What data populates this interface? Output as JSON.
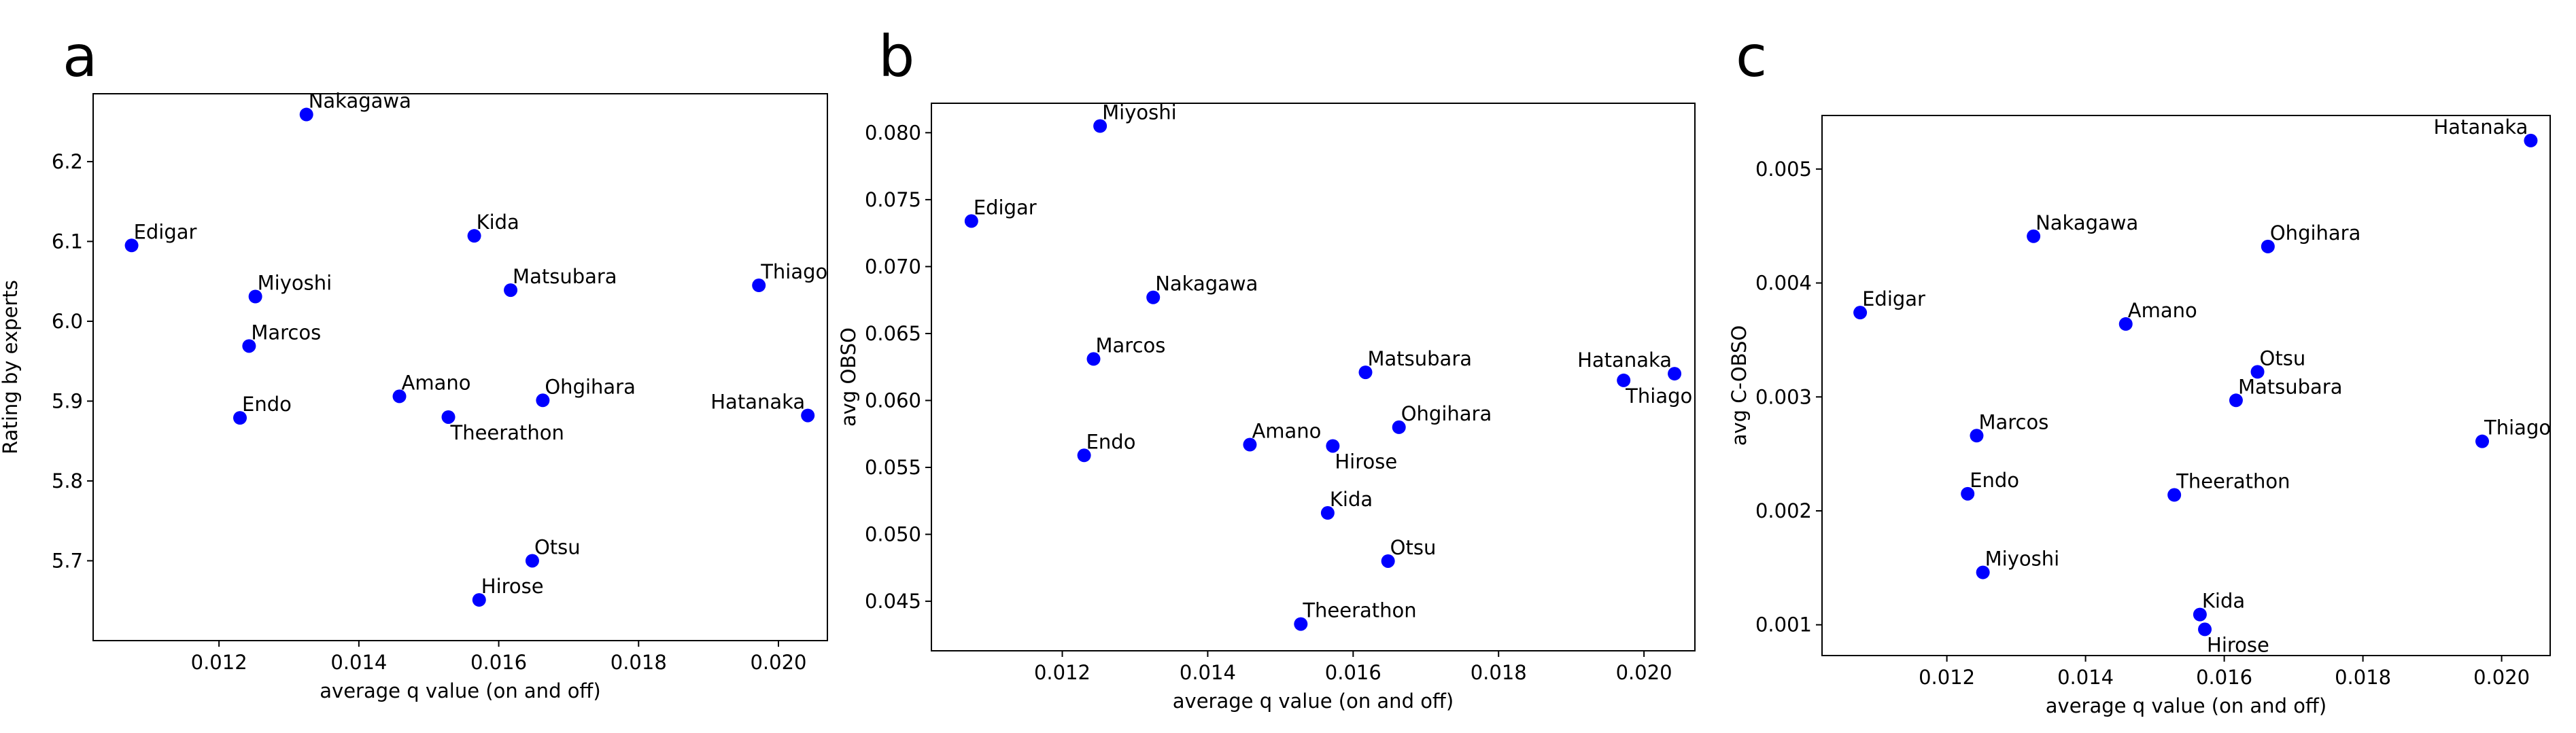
{
  "chart_data": [
    {
      "panel": "a",
      "type": "scatter",
      "xlabel": "average q value (on and off)",
      "ylabel": "Rating by experts",
      "xlim": [
        0.0102,
        0.0207
      ],
      "ylim": [
        5.6,
        6.285
      ],
      "xticks": [
        "0.012",
        "0.014",
        "0.016",
        "0.018",
        "0.020"
      ],
      "xtick_values": [
        0.012,
        0.014,
        0.016,
        0.018,
        0.02
      ],
      "yticks": [
        "5.7",
        "5.8",
        "5.9",
        "6.0",
        "6.1",
        "6.2"
      ],
      "ytick_values": [
        5.7,
        5.8,
        5.9,
        6.0,
        6.1,
        6.2
      ],
      "points": [
        {
          "label": "Nakagawa",
          "x": 0.01325,
          "y": 6.259,
          "anchor": "start",
          "dy": -1
        },
        {
          "label": "Edigar",
          "x": 0.01075,
          "y": 6.095,
          "anchor": "start",
          "dy": -1
        },
        {
          "label": "Kida",
          "x": 0.01565,
          "y": 6.107,
          "anchor": "start",
          "dy": -1
        },
        {
          "label": "Miyoshi",
          "x": 0.01252,
          "y": 6.031,
          "anchor": "start",
          "dy": -1
        },
        {
          "label": "Matsubara",
          "x": 0.01617,
          "y": 6.039,
          "anchor": "start",
          "dy": -1
        },
        {
          "label": "Thiago",
          "x": 0.01972,
          "y": 6.045,
          "anchor": "start",
          "dy": -1
        },
        {
          "label": "Marcos",
          "x": 0.01243,
          "y": 5.969,
          "anchor": "start",
          "dy": -1
        },
        {
          "label": "Amano",
          "x": 0.01458,
          "y": 5.906,
          "anchor": "start",
          "dy": -1
        },
        {
          "label": "Ohgihara",
          "x": 0.01663,
          "y": 5.901,
          "anchor": "start",
          "dy": -1
        },
        {
          "label": "Endo",
          "x": 0.0123,
          "y": 5.879,
          "anchor": "start",
          "dy": -1
        },
        {
          "label": "Theerathon",
          "x": 0.01528,
          "y": 5.88,
          "anchor": "start",
          "dy": 1
        },
        {
          "label": "Hatanaka",
          "x": 0.02042,
          "y": 5.882,
          "anchor": "end",
          "dy": -1
        },
        {
          "label": "Otsu",
          "x": 0.01648,
          "y": 5.7,
          "anchor": "start",
          "dy": -1
        },
        {
          "label": "Hirose",
          "x": 0.01572,
          "y": 5.651,
          "anchor": "start",
          "dy": -1
        }
      ]
    },
    {
      "panel": "b",
      "type": "scatter",
      "xlabel": "average q value (on and off)",
      "ylabel": "avg OBSO",
      "xlim": [
        0.0102,
        0.0207
      ],
      "ylim": [
        0.0413,
        0.0822
      ],
      "xticks": [
        "0.012",
        "0.014",
        "0.016",
        "0.018",
        "0.020"
      ],
      "xtick_values": [
        0.012,
        0.014,
        0.016,
        0.018,
        0.02
      ],
      "yticks": [
        "0.045",
        "0.050",
        "0.055",
        "0.060",
        "0.065",
        "0.070",
        "0.075",
        "0.080"
      ],
      "ytick_values": [
        0.045,
        0.05,
        0.055,
        0.06,
        0.065,
        0.07,
        0.075,
        0.08
      ],
      "points": [
        {
          "label": "Miyoshi",
          "x": 0.01252,
          "y": 0.0805,
          "anchor": "start",
          "dy": -1
        },
        {
          "label": "Edigar",
          "x": 0.01075,
          "y": 0.0734,
          "anchor": "start",
          "dy": -1
        },
        {
          "label": "Nakagawa",
          "x": 0.01325,
          "y": 0.0677,
          "anchor": "start",
          "dy": -1
        },
        {
          "label": "Marcos",
          "x": 0.01243,
          "y": 0.0631,
          "anchor": "start",
          "dy": -1
        },
        {
          "label": "Matsubara",
          "x": 0.01617,
          "y": 0.0621,
          "anchor": "start",
          "dy": -1
        },
        {
          "label": "Hatanaka",
          "x": 0.02042,
          "y": 0.062,
          "anchor": "end",
          "dy": -1
        },
        {
          "label": "Thiago",
          "x": 0.01972,
          "y": 0.0615,
          "anchor": "start",
          "dy": 1
        },
        {
          "label": "Ohgihara",
          "x": 0.01663,
          "y": 0.058,
          "anchor": "start",
          "dy": -1
        },
        {
          "label": "Amano",
          "x": 0.01458,
          "y": 0.0567,
          "anchor": "start",
          "dy": -1
        },
        {
          "label": "Hirose",
          "x": 0.01572,
          "y": 0.0566,
          "anchor": "start",
          "dy": 1
        },
        {
          "label": "Endo",
          "x": 0.0123,
          "y": 0.0559,
          "anchor": "start",
          "dy": -1
        },
        {
          "label": "Kida",
          "x": 0.01565,
          "y": 0.0516,
          "anchor": "start",
          "dy": -1
        },
        {
          "label": "Otsu",
          "x": 0.01648,
          "y": 0.048,
          "anchor": "start",
          "dy": -1
        },
        {
          "label": "Theerathon",
          "x": 0.01528,
          "y": 0.0433,
          "anchor": "start",
          "dy": -1
        }
      ]
    },
    {
      "panel": "c",
      "type": "scatter",
      "xlabel": "average q value (on and off)",
      "ylabel": "avg C-OBSO",
      "xlim": [
        0.0102,
        0.0207
      ],
      "ylim": [
        0.00073,
        0.00547
      ],
      "xticks": [
        "0.012",
        "0.014",
        "0.016",
        "0.018",
        "0.020"
      ],
      "xtick_values": [
        0.012,
        0.014,
        0.016,
        0.018,
        0.02
      ],
      "yticks": [
        "0.001",
        "0.002",
        "0.003",
        "0.004",
        "0.005"
      ],
      "ytick_values": [
        0.001,
        0.002,
        0.003,
        0.004,
        0.005
      ],
      "points": [
        {
          "label": "Hatanaka",
          "x": 0.02042,
          "y": 0.00525,
          "anchor": "end",
          "dy": -1
        },
        {
          "label": "Nakagawa",
          "x": 0.01325,
          "y": 0.00441,
          "anchor": "start",
          "dy": -1
        },
        {
          "label": "Ohgihara",
          "x": 0.01663,
          "y": 0.00432,
          "anchor": "start",
          "dy": -1
        },
        {
          "label": "Edigar",
          "x": 0.01075,
          "y": 0.00374,
          "anchor": "start",
          "dy": -1
        },
        {
          "label": "Amano",
          "x": 0.01458,
          "y": 0.00364,
          "anchor": "start",
          "dy": -1
        },
        {
          "label": "Otsu",
          "x": 0.01648,
          "y": 0.00322,
          "anchor": "start",
          "dy": -1
        },
        {
          "label": "Matsubara",
          "x": 0.01617,
          "y": 0.00297,
          "anchor": "start",
          "dy": -1
        },
        {
          "label": "Marcos",
          "x": 0.01243,
          "y": 0.00266,
          "anchor": "start",
          "dy": -1
        },
        {
          "label": "Thiago",
          "x": 0.01972,
          "y": 0.00261,
          "anchor": "start",
          "dy": -1
        },
        {
          "label": "Endo",
          "x": 0.0123,
          "y": 0.00215,
          "anchor": "start",
          "dy": -1
        },
        {
          "label": "Theerathon",
          "x": 0.01528,
          "y": 0.00214,
          "anchor": "start",
          "dy": -1
        },
        {
          "label": "Miyoshi",
          "x": 0.01252,
          "y": 0.00146,
          "anchor": "start",
          "dy": -1
        },
        {
          "label": "Kida",
          "x": 0.01565,
          "y": 0.00109,
          "anchor": "start",
          "dy": -1
        },
        {
          "label": "Hirose",
          "x": 0.01572,
          "y": 0.00096,
          "anchor": "start",
          "dy": 1
        }
      ]
    }
  ]
}
